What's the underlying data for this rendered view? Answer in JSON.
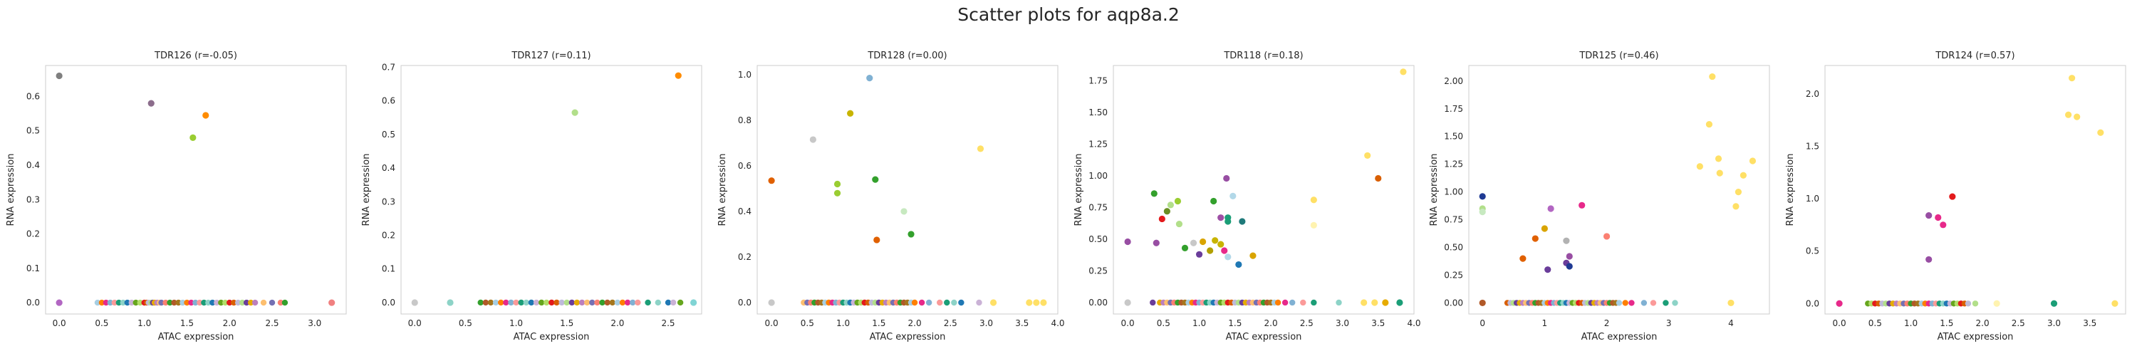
{
  "suptitle": "Scatter plots for aqp8a.2",
  "colors": {
    "frame": "#cccccc",
    "text": "#262626",
    "zero_points": [
      "#a6cee3",
      "#1f78b4",
      "#b2df8a",
      "#33a02c",
      "#fb9a99",
      "#e31a1c",
      "#fdbf6f",
      "#ff7f00",
      "#cab2d6",
      "#6a3d9a",
      "#b15928",
      "#1b9e77",
      "#d95f02",
      "#7570b3",
      "#e7298a",
      "#66a61e",
      "#e6ab02",
      "#a6761d",
      "#8dd3c7",
      "#bebada",
      "#fb8072",
      "#80b1d3",
      "#b3de69",
      "#bc80bd"
    ]
  },
  "chart_data": [
    {
      "type": "scatter",
      "title": "TDR126 (r=-0.05)",
      "xlabel": "ATAC expression",
      "ylabel": "RNA expression",
      "xlim": [
        -0.16,
        3.37
      ],
      "ylim": [
        -0.033,
        0.69
      ],
      "xticks": [
        0.0,
        0.5,
        1.0,
        1.5,
        2.0,
        2.5,
        3.0
      ],
      "xtick_labels": [
        "0.0",
        "0.5",
        "1.0",
        "1.5",
        "2.0",
        "2.5",
        "3.0"
      ],
      "yticks": [
        0.0,
        0.1,
        0.2,
        0.3,
        0.4,
        0.5,
        0.6
      ],
      "ytick_labels": [
        "0.0",
        "0.1",
        "0.2",
        "0.3",
        "0.4",
        "0.5",
        "0.6"
      ],
      "grid": false,
      "points": [
        {
          "x": 0.0,
          "y": 0.66,
          "color": "#7f7f7f"
        },
        {
          "x": 1.08,
          "y": 0.58,
          "color": "#8c6d8c"
        },
        {
          "x": 1.72,
          "y": 0.545,
          "color": "#ff8c00"
        },
        {
          "x": 1.57,
          "y": 0.48,
          "color": "#9acd32"
        },
        {
          "x": 0.0,
          "y": 0.0,
          "color": "#b266c2"
        },
        {
          "x": 3.2,
          "y": 0.0,
          "color": "#f08080"
        }
      ],
      "zero_points_x": [
        0.45,
        0.5,
        0.55,
        0.6,
        0.65,
        0.7,
        0.75,
        0.8,
        0.85,
        0.9,
        0.95,
        1.0,
        1.03,
        1.05,
        1.08,
        1.1,
        1.12,
        1.15,
        1.18,
        1.2,
        1.25,
        1.3,
        1.35,
        1.4,
        1.45,
        1.5,
        1.55,
        1.6,
        1.65,
        1.7,
        1.75,
        1.8,
        1.85,
        1.9,
        1.95,
        2.0,
        2.05,
        2.1,
        2.15,
        2.2,
        2.25,
        2.3,
        2.4,
        2.5,
        2.6,
        2.65
      ]
    },
    {
      "type": "scatter",
      "title": "TDR127 (r=0.11)",
      "xlabel": "ATAC expression",
      "ylabel": "RNA expression",
      "xlim": [
        -0.135,
        2.83
      ],
      "ylim": [
        -0.034,
        0.705
      ],
      "xticks": [
        0.0,
        0.5,
        1.0,
        1.5,
        2.0,
        2.5
      ],
      "xtick_labels": [
        "0.0",
        "0.5",
        "1.0",
        "1.5",
        "2.0",
        "2.5"
      ],
      "yticks": [
        0.0,
        0.1,
        0.2,
        0.3,
        0.4,
        0.5,
        0.6,
        0.7
      ],
      "ytick_labels": [
        "0.0",
        "0.1",
        "0.2",
        "0.3",
        "0.4",
        "0.5",
        "0.6",
        "0.7"
      ],
      "grid": false,
      "points": [
        {
          "x": 2.6,
          "y": 0.675,
          "color": "#ff8c00"
        },
        {
          "x": 1.58,
          "y": 0.565,
          "color": "#b2df8a"
        },
        {
          "x": 0.0,
          "y": 0.0,
          "color": "#c8c8c8"
        },
        {
          "x": 0.35,
          "y": 0.0,
          "color": "#8dd3c7"
        },
        {
          "x": 2.75,
          "y": 0.0,
          "color": "#80d4d4"
        }
      ],
      "zero_points_x": [
        0.65,
        0.7,
        0.75,
        0.8,
        0.85,
        0.9,
        0.95,
        1.0,
        1.05,
        1.1,
        1.15,
        1.2,
        1.25,
        1.3,
        1.35,
        1.4,
        1.45,
        1.5,
        1.55,
        1.6,
        1.65,
        1.7,
        1.75,
        1.8,
        1.85,
        1.9,
        1.95,
        2.0,
        2.05,
        2.1,
        2.15,
        2.2,
        2.3,
        2.4,
        2.5,
        2.55,
        2.62
      ]
    },
    {
      "type": "scatter",
      "title": "TDR128 (r=0.00)",
      "xlabel": "ATAC expression",
      "ylabel": "RNA expression",
      "xlim": [
        -0.2,
        4.0
      ],
      "ylim": [
        -0.05,
        1.04
      ],
      "xticks": [
        0.0,
        0.5,
        1.0,
        1.5,
        2.0,
        2.5,
        3.0,
        3.5,
        4.0
      ],
      "xtick_labels": [
        "0.0",
        "0.5",
        "1.0",
        "1.5",
        "2.0",
        "2.5",
        "3.0",
        "3.5",
        "4.0"
      ],
      "yticks": [
        0.0,
        0.2,
        0.4,
        0.6,
        0.8,
        1.0
      ],
      "ytick_labels": [
        "0.0",
        "0.2",
        "0.4",
        "0.6",
        "0.8",
        "1.0"
      ],
      "grid": false,
      "points": [
        {
          "x": 1.37,
          "y": 0.985,
          "color": "#80b1d3"
        },
        {
          "x": 1.1,
          "y": 0.83,
          "color": "#c8b400"
        },
        {
          "x": 0.58,
          "y": 0.715,
          "color": "#c8c8c8"
        },
        {
          "x": 2.92,
          "y": 0.675,
          "color": "#ffe066"
        },
        {
          "x": 0.0,
          "y": 0.535,
          "color": "#e06000"
        },
        {
          "x": 1.45,
          "y": 0.54,
          "color": "#33a02c"
        },
        {
          "x": 0.92,
          "y": 0.52,
          "color": "#9acd32"
        },
        {
          "x": 0.92,
          "y": 0.48,
          "color": "#9acd32"
        },
        {
          "x": 1.85,
          "y": 0.4,
          "color": "#c7e9c0"
        },
        {
          "x": 1.95,
          "y": 0.3,
          "color": "#33a02c"
        },
        {
          "x": 1.47,
          "y": 0.275,
          "color": "#e06000"
        },
        {
          "x": 0.0,
          "y": 0.0,
          "color": "#c8c8c8"
        },
        {
          "x": 3.1,
          "y": 0.0,
          "color": "#ffe066"
        },
        {
          "x": 3.6,
          "y": 0.0,
          "color": "#ffe066"
        },
        {
          "x": 3.7,
          "y": 0.0,
          "color": "#ffe066"
        },
        {
          "x": 3.8,
          "y": 0.0,
          "color": "#ffe066"
        }
      ],
      "zero_points_x": [
        0.45,
        0.5,
        0.55,
        0.6,
        0.65,
        0.7,
        0.75,
        0.8,
        0.85,
        0.9,
        0.95,
        1.0,
        1.05,
        1.1,
        1.15,
        1.2,
        1.25,
        1.3,
        1.35,
        1.4,
        1.45,
        1.5,
        1.55,
        1.6,
        1.65,
        1.7,
        1.75,
        1.8,
        1.85,
        1.9,
        1.95,
        2.0,
        2.1,
        2.2,
        2.35,
        2.45,
        2.55,
        2.65,
        2.9
      ]
    },
    {
      "type": "scatter",
      "title": "TDR118 (r=0.18)",
      "xlabel": "ATAC expression",
      "ylabel": "RNA expression",
      "xlim": [
        -0.2,
        4.0
      ],
      "ylim": [
        -0.09,
        1.87
      ],
      "xticks": [
        0.0,
        0.5,
        1.0,
        1.5,
        2.0,
        2.5,
        3.0,
        3.5,
        4.0
      ],
      "xtick_labels": [
        "0.0",
        "0.5",
        "1.0",
        "1.5",
        "2.0",
        "2.5",
        "3.0",
        "3.5",
        "4.0"
      ],
      "yticks": [
        0.0,
        0.25,
        0.5,
        0.75,
        1.0,
        1.25,
        1.5,
        1.75
      ],
      "ytick_labels": [
        "0.00",
        "0.25",
        "0.50",
        "0.75",
        "1.00",
        "1.25",
        "1.50",
        "1.75"
      ],
      "grid": false,
      "points": [
        {
          "x": 3.85,
          "y": 1.82,
          "color": "#ffe066"
        },
        {
          "x": 3.35,
          "y": 1.16,
          "color": "#ffe066"
        },
        {
          "x": 3.5,
          "y": 0.98,
          "color": "#d95f02"
        },
        {
          "x": 1.38,
          "y": 0.98,
          "color": "#984ea3"
        },
        {
          "x": 0.37,
          "y": 0.86,
          "color": "#33a02c"
        },
        {
          "x": 1.47,
          "y": 0.84,
          "color": "#b2d8e8"
        },
        {
          "x": 2.6,
          "y": 0.81,
          "color": "#ffe066"
        },
        {
          "x": 0.7,
          "y": 0.8,
          "color": "#9acd32"
        },
        {
          "x": 1.2,
          "y": 0.8,
          "color": "#33a02c"
        },
        {
          "x": 0.6,
          "y": 0.77,
          "color": "#b2df8a"
        },
        {
          "x": 0.55,
          "y": 0.72,
          "color": "#6a8e23"
        },
        {
          "x": 1.3,
          "y": 0.67,
          "color": "#9e4fa5"
        },
        {
          "x": 1.4,
          "y": 0.67,
          "color": "#1b9e77"
        },
        {
          "x": 1.4,
          "y": 0.64,
          "color": "#1b9e77"
        },
        {
          "x": 1.6,
          "y": 0.64,
          "color": "#1f7a7a"
        },
        {
          "x": 0.48,
          "y": 0.66,
          "color": "#e31a1c"
        },
        {
          "x": 0.72,
          "y": 0.62,
          "color": "#b2df8a"
        },
        {
          "x": 2.6,
          "y": 0.61,
          "color": "#fff3b0"
        },
        {
          "x": 0.0,
          "y": 0.48,
          "color": "#984ea3"
        },
        {
          "x": 0.4,
          "y": 0.47,
          "color": "#984ea3"
        },
        {
          "x": 0.8,
          "y": 0.43,
          "color": "#33a02c"
        },
        {
          "x": 0.92,
          "y": 0.47,
          "color": "#c8c8c8"
        },
        {
          "x": 1.05,
          "y": 0.48,
          "color": "#d9a400"
        },
        {
          "x": 1.22,
          "y": 0.49,
          "color": "#c8b400"
        },
        {
          "x": 1.3,
          "y": 0.46,
          "color": "#c8b400"
        },
        {
          "x": 1.35,
          "y": 0.41,
          "color": "#e7298a"
        },
        {
          "x": 1.15,
          "y": 0.41,
          "color": "#b2a000"
        },
        {
          "x": 1.0,
          "y": 0.38,
          "color": "#6a3d9a"
        },
        {
          "x": 1.4,
          "y": 0.36,
          "color": "#b2d8e8"
        },
        {
          "x": 1.55,
          "y": 0.3,
          "color": "#1f78b4"
        },
        {
          "x": 1.75,
          "y": 0.37,
          "color": "#d9a400"
        },
        {
          "x": 0.0,
          "y": 0.0,
          "color": "#c8c8c8"
        },
        {
          "x": 3.3,
          "y": 0.0,
          "color": "#ffe066"
        },
        {
          "x": 3.45,
          "y": 0.0,
          "color": "#ffe066"
        },
        {
          "x": 3.6,
          "y": 0.0,
          "color": "#e6ab02"
        },
        {
          "x": 3.8,
          "y": 0.0,
          "color": "#1b9e77"
        }
      ],
      "zero_points_x": [
        0.35,
        0.45,
        0.5,
        0.55,
        0.6,
        0.65,
        0.7,
        0.75,
        0.8,
        0.85,
        0.9,
        0.95,
        1.0,
        1.05,
        1.1,
        1.15,
        1.2,
        1.25,
        1.3,
        1.35,
        1.4,
        1.45,
        1.5,
        1.55,
        1.6,
        1.65,
        1.7,
        1.75,
        1.8,
        1.85,
        1.9,
        1.95,
        2.0,
        2.05,
        2.1,
        2.2,
        2.3,
        2.45,
        2.6,
        2.95
      ]
    },
    {
      "type": "scatter",
      "title": "TDR125 (r=0.46)",
      "xlabel": "ATAC expression",
      "ylabel": "RNA expression",
      "xlim": [
        -0.22,
        4.62
      ],
      "ylim": [
        -0.1,
        2.14
      ],
      "xticks": [
        0,
        1,
        2,
        3,
        4
      ],
      "xtick_labels": [
        "0",
        "1",
        "2",
        "3",
        "4"
      ],
      "yticks": [
        0.0,
        0.25,
        0.5,
        0.75,
        1.0,
        1.25,
        1.5,
        1.75,
        2.0
      ],
      "ytick_labels": [
        "0.00",
        "0.25",
        "0.50",
        "0.75",
        "1.00",
        "1.25",
        "1.50",
        "1.75",
        "2.00"
      ],
      "grid": false,
      "points": [
        {
          "x": 3.7,
          "y": 2.04,
          "color": "#ffe066"
        },
        {
          "x": 3.65,
          "y": 1.61,
          "color": "#ffe066"
        },
        {
          "x": 3.8,
          "y": 1.3,
          "color": "#ffe066"
        },
        {
          "x": 4.35,
          "y": 1.28,
          "color": "#ffe066"
        },
        {
          "x": 3.5,
          "y": 1.23,
          "color": "#ffe066"
        },
        {
          "x": 3.82,
          "y": 1.17,
          "color": "#ffe066"
        },
        {
          "x": 4.2,
          "y": 1.15,
          "color": "#ffe066"
        },
        {
          "x": 4.12,
          "y": 1.0,
          "color": "#ffe066"
        },
        {
          "x": 4.08,
          "y": 0.87,
          "color": "#ffe066"
        },
        {
          "x": 0.0,
          "y": 0.96,
          "color": "#1f3a93"
        },
        {
          "x": 0.0,
          "y": 0.85,
          "color": "#b2df8a"
        },
        {
          "x": 0.0,
          "y": 0.82,
          "color": "#c7e9c0"
        },
        {
          "x": 1.1,
          "y": 0.85,
          "color": "#b266c2"
        },
        {
          "x": 1.6,
          "y": 0.88,
          "color": "#e7298a"
        },
        {
          "x": 1.0,
          "y": 0.67,
          "color": "#d9a400"
        },
        {
          "x": 0.85,
          "y": 0.58,
          "color": "#e06000"
        },
        {
          "x": 1.35,
          "y": 0.56,
          "color": "#b2b2b2"
        },
        {
          "x": 2.0,
          "y": 0.6,
          "color": "#fb8072"
        },
        {
          "x": 0.65,
          "y": 0.4,
          "color": "#e06000"
        },
        {
          "x": 1.4,
          "y": 0.42,
          "color": "#984ea3"
        },
        {
          "x": 1.35,
          "y": 0.36,
          "color": "#6a3d9a"
        },
        {
          "x": 1.05,
          "y": 0.3,
          "color": "#6a3d9a"
        },
        {
          "x": 1.4,
          "y": 0.33,
          "color": "#1f3a93"
        },
        {
          "x": 0.0,
          "y": 0.0,
          "color": "#b15928"
        },
        {
          "x": 4.0,
          "y": 0.0,
          "color": "#ffe066"
        }
      ],
      "zero_points_x": [
        0.4,
        0.45,
        0.5,
        0.55,
        0.6,
        0.65,
        0.7,
        0.75,
        0.8,
        0.85,
        0.9,
        0.95,
        1.0,
        1.05,
        1.1,
        1.15,
        1.2,
        1.25,
        1.3,
        1.35,
        1.4,
        1.45,
        1.5,
        1.55,
        1.6,
        1.65,
        1.7,
        1.75,
        1.8,
        1.85,
        1.9,
        1.95,
        2.0,
        2.05,
        2.1,
        2.15,
        2.2,
        2.3,
        2.4,
        2.6,
        2.75,
        2.95,
        3.1
      ]
    },
    {
      "type": "scatter",
      "title": "TDR124 (r=0.57)",
      "xlabel": "ATAC expression",
      "ylabel": "RNA expression",
      "xlim": [
        -0.2,
        4.0
      ],
      "ylim": [
        -0.1,
        2.27
      ],
      "xticks": [
        0.0,
        0.5,
        1.0,
        1.5,
        2.0,
        2.5,
        3.0,
        3.5
      ],
      "xtick_labels": [
        "0.0",
        "0.5",
        "1.0",
        "1.5",
        "2.0",
        "2.5",
        "3.0",
        "3.5"
      ],
      "yticks": [
        0.0,
        0.5,
        1.0,
        1.5,
        2.0
      ],
      "ytick_labels": [
        "0.0",
        "0.5",
        "1.0",
        "1.5",
        "2.0"
      ],
      "grid": false,
      "points": [
        {
          "x": 3.25,
          "y": 2.15,
          "color": "#ffe066"
        },
        {
          "x": 3.2,
          "y": 1.8,
          "color": "#ffe066"
        },
        {
          "x": 3.32,
          "y": 1.78,
          "color": "#ffe066"
        },
        {
          "x": 3.65,
          "y": 1.63,
          "color": "#ffe066"
        },
        {
          "x": 1.58,
          "y": 1.02,
          "color": "#e31a1c"
        },
        {
          "x": 1.25,
          "y": 0.84,
          "color": "#984ea3"
        },
        {
          "x": 1.38,
          "y": 0.82,
          "color": "#e7298a"
        },
        {
          "x": 1.45,
          "y": 0.75,
          "color": "#e7298a"
        },
        {
          "x": 1.25,
          "y": 0.42,
          "color": "#984ea3"
        },
        {
          "x": 0.0,
          "y": 0.0,
          "color": "#e7298a"
        },
        {
          "x": 2.2,
          "y": 0.0,
          "color": "#fff3b0"
        },
        {
          "x": 3.0,
          "y": 0.0,
          "color": "#1b9e77"
        },
        {
          "x": 3.85,
          "y": 0.0,
          "color": "#ffe066"
        }
      ],
      "zero_points_x": [
        0.4,
        0.45,
        0.5,
        0.55,
        0.6,
        0.65,
        0.7,
        0.75,
        0.8,
        0.85,
        0.9,
        0.95,
        1.0,
        1.05,
        1.1,
        1.15,
        1.2,
        1.25,
        1.3,
        1.35,
        1.4,
        1.45,
        1.5,
        1.55,
        1.6,
        1.65,
        1.7,
        1.75,
        1.8,
        1.9
      ]
    }
  ]
}
